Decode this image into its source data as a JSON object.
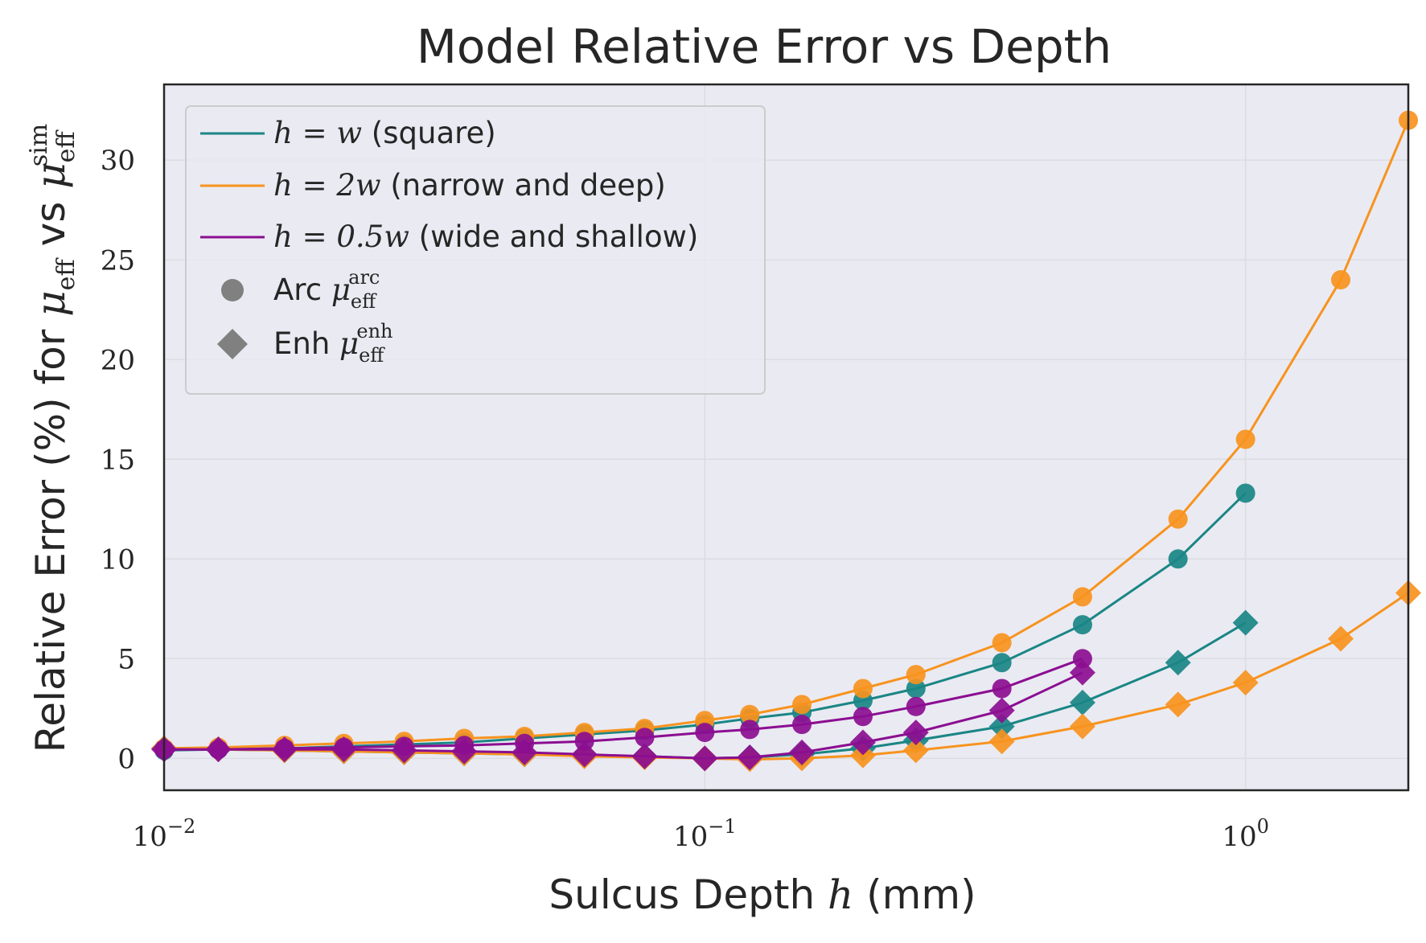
{
  "chart_data": {
    "type": "line",
    "title": "Model Relative Error vs Depth",
    "xlabel": {
      "pre": "Sulcus Depth ",
      "var": "h",
      "post": " (mm)"
    },
    "ylabel": {
      "pre": "Relative Error (%) for ",
      "mu1": "μ",
      "sub1": "eff",
      "mid": " vs ",
      "mu2": "μ",
      "sub2": "eff",
      "sup2": "sim"
    },
    "x_scale": "log",
    "xlim": [
      0.01,
      2.0
    ],
    "ylim": [
      -1.6,
      33.8
    ],
    "xticks": [
      {
        "value": 0.01,
        "base": "10",
        "exp": "−2"
      },
      {
        "value": 0.1,
        "base": "10",
        "exp": "−1"
      },
      {
        "value": 1,
        "base": "10",
        "exp": "0"
      }
    ],
    "yticks": [
      0,
      5,
      10,
      15,
      20,
      25,
      30
    ],
    "grid": true,
    "legend_position": "upper-left",
    "colors": {
      "square": "#1a8685",
      "narrow": "#f7931e",
      "wide": "#8b0e91",
      "marker": "#808080"
    },
    "legend": [
      {
        "kind": "line",
        "color_key": "square",
        "math": "h = w",
        "text": " (square)"
      },
      {
        "kind": "line",
        "color_key": "narrow",
        "math": "h = 2w",
        "text": " (narrow and deep)"
      },
      {
        "kind": "line",
        "color_key": "wide",
        "math": "h = 0.5w",
        "text": " (wide and shallow)"
      },
      {
        "kind": "circle",
        "text": "Arc ",
        "mu": "μ",
        "sub": "eff",
        "sup": "arc"
      },
      {
        "kind": "diamond",
        "text": "Enh ",
        "mu": "μ",
        "sub": "eff",
        "sup": "enh"
      }
    ],
    "series": [
      {
        "name": "h = w (square)",
        "color_key": "square",
        "marker": "circle",
        "x": [
          0.01,
          0.0126,
          0.0167,
          0.0215,
          0.0278,
          0.0359,
          0.0464,
          0.0599,
          0.0774,
          0.1,
          0.1211,
          0.1512,
          0.1961,
          0.2457,
          0.3543,
          0.4995,
          0.7501,
          1.0
        ],
        "y": [
          0.4,
          0.45,
          0.5,
          0.6,
          0.7,
          0.8,
          1.0,
          1.2,
          1.4,
          1.7,
          2.0,
          2.3,
          2.9,
          3.5,
          4.8,
          6.7,
          10.0,
          13.3
        ]
      },
      {
        "name": "h = w (square)",
        "color_key": "square",
        "marker": "diamond",
        "x": [
          0.01,
          0.0126,
          0.0167,
          0.0215,
          0.0278,
          0.0359,
          0.0464,
          0.0599,
          0.0774,
          0.1,
          0.1211,
          0.1512,
          0.1961,
          0.2457,
          0.3543,
          0.4995,
          0.7501,
          1.0
        ],
        "y": [
          0.5,
          0.45,
          0.4,
          0.35,
          0.3,
          0.25,
          0.2,
          0.15,
          0.1,
          0.0,
          0.05,
          0.2,
          0.5,
          0.9,
          1.6,
          2.8,
          4.8,
          6.8
        ]
      },
      {
        "name": "h = 2w (narrow and deep)",
        "color_key": "narrow",
        "marker": "circle",
        "x": [
          0.01,
          0.0126,
          0.0167,
          0.0215,
          0.0278,
          0.0359,
          0.0464,
          0.0599,
          0.0774,
          0.1,
          0.1211,
          0.1512,
          0.1961,
          0.2457,
          0.3543,
          0.4995,
          0.7501,
          1.0,
          1.5,
          2.0
        ],
        "y": [
          0.5,
          0.55,
          0.65,
          0.75,
          0.85,
          1.0,
          1.1,
          1.3,
          1.5,
          1.9,
          2.2,
          2.7,
          3.5,
          4.2,
          5.8,
          8.1,
          12.0,
          16.0,
          24.0,
          32.0
        ]
      },
      {
        "name": "h = 2w (narrow and deep)",
        "color_key": "narrow",
        "marker": "diamond",
        "x": [
          0.01,
          0.0126,
          0.0167,
          0.0215,
          0.0278,
          0.0359,
          0.0464,
          0.0599,
          0.0774,
          0.1,
          0.1211,
          0.1512,
          0.1961,
          0.2457,
          0.3543,
          0.4995,
          0.7501,
          1.0,
          1.5,
          2.0
        ],
        "y": [
          0.5,
          0.45,
          0.4,
          0.35,
          0.3,
          0.25,
          0.2,
          0.1,
          0.05,
          0.0,
          -0.05,
          0.0,
          0.15,
          0.4,
          0.85,
          1.6,
          2.7,
          3.8,
          6.0,
          8.3
        ]
      },
      {
        "name": "h = 0.5w (wide and shallow)",
        "color_key": "wide",
        "marker": "circle",
        "x": [
          0.01,
          0.0126,
          0.0167,
          0.0215,
          0.0278,
          0.0359,
          0.0464,
          0.0599,
          0.0774,
          0.1,
          0.1211,
          0.1512,
          0.1961,
          0.2457,
          0.3543,
          0.4995
        ],
        "y": [
          0.45,
          0.45,
          0.5,
          0.55,
          0.6,
          0.65,
          0.75,
          0.85,
          1.05,
          1.3,
          1.45,
          1.7,
          2.1,
          2.6,
          3.5,
          5.0
        ]
      },
      {
        "name": "h = 0.5w (wide and shallow)",
        "color_key": "wide",
        "marker": "diamond",
        "x": [
          0.01,
          0.0126,
          0.0167,
          0.0215,
          0.0278,
          0.0359,
          0.0464,
          0.0599,
          0.0774,
          0.1,
          0.1211,
          0.1512,
          0.1961,
          0.2457,
          0.3543,
          0.4995
        ],
        "y": [
          0.45,
          0.45,
          0.45,
          0.45,
          0.4,
          0.35,
          0.3,
          0.2,
          0.1,
          0.0,
          0.05,
          0.3,
          0.8,
          1.3,
          2.4,
          4.3
        ]
      }
    ]
  }
}
